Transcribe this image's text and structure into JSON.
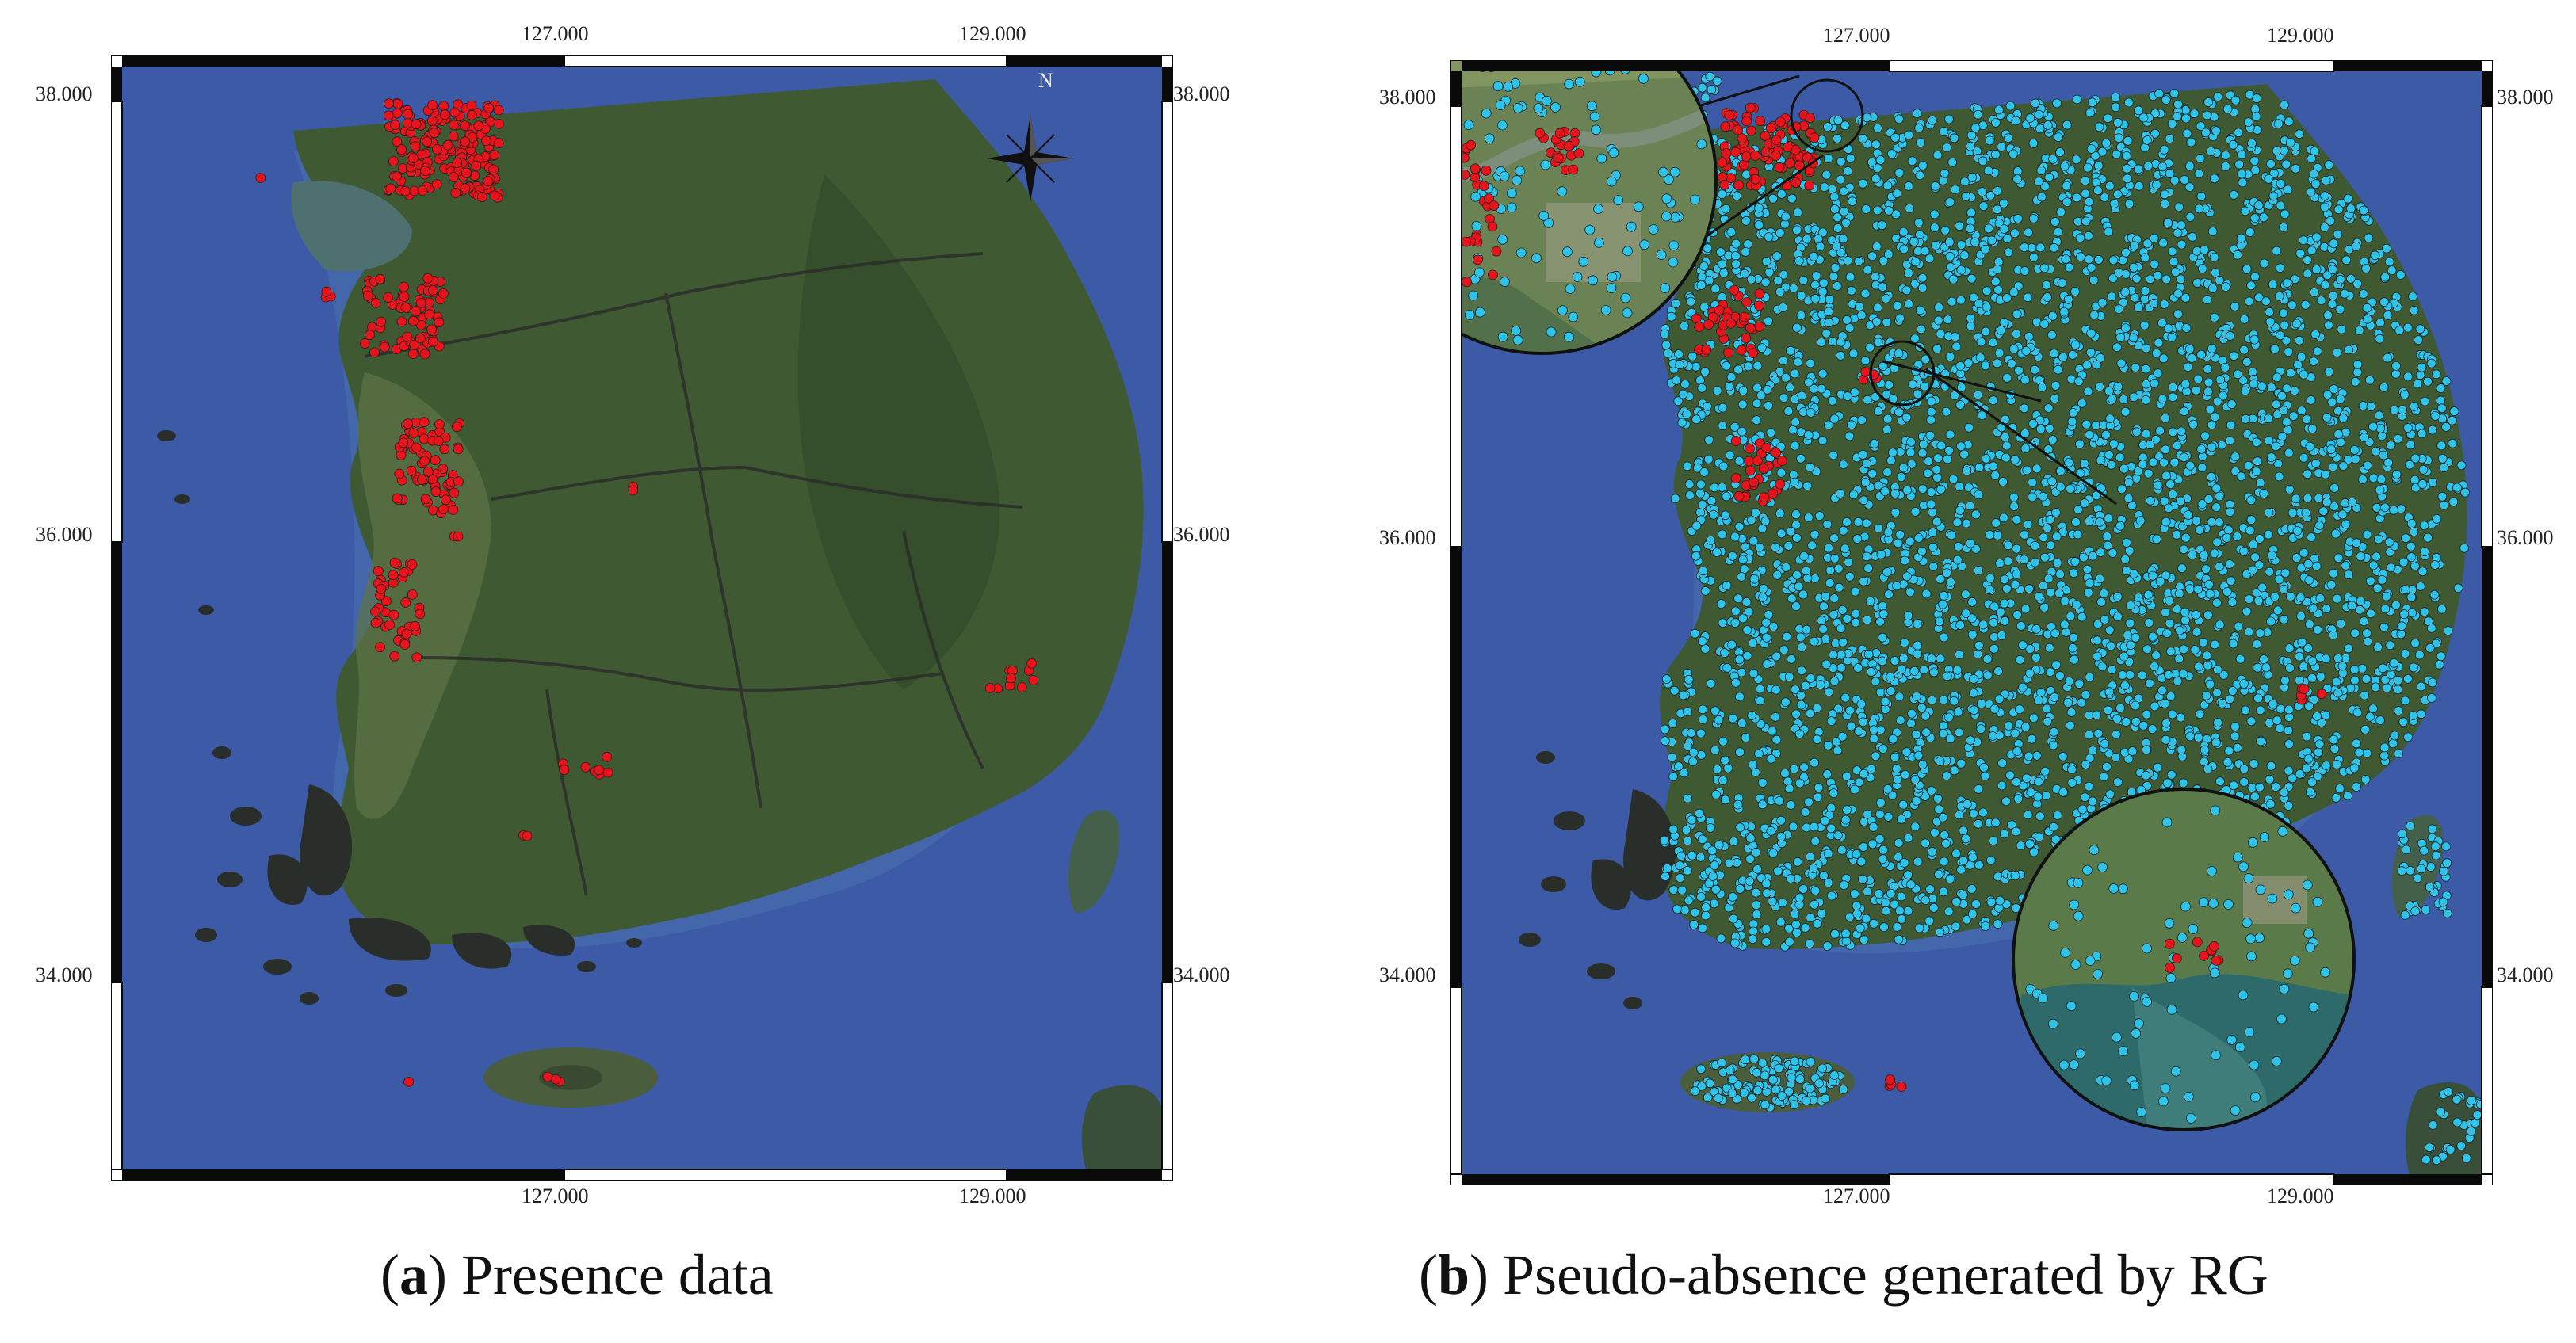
{
  "panels": [
    {
      "id": "a",
      "caption_letter": "a",
      "caption_text": "Presence data",
      "top_ticks": [
        "127.000",
        "129.000"
      ],
      "bottom_ticks": [
        "127.000",
        "129.000"
      ],
      "left_ticks": [
        "38.000",
        "36.000",
        "34.000"
      ],
      "right_ticks": [
        "38.000",
        "36.000",
        "34.000"
      ],
      "north_label": "N"
    },
    {
      "id": "b",
      "caption_letter": "b",
      "caption_text": "Pseudo-absence generated by RG",
      "top_ticks": [
        "127.000",
        "129.000"
      ],
      "bottom_ticks": [
        "127.000",
        "129.000"
      ],
      "left_ticks": [
        "38.000",
        "36.000",
        "34.000"
      ],
      "right_ticks": [
        "38.000",
        "36.000",
        "34.000"
      ]
    }
  ],
  "colors": {
    "sea": "#3d5aa6",
    "land": "#3f5a32",
    "presence_point": "#e8141b",
    "pseudo_absence_point": "#2ec4ea",
    "frame": "#0a0a0a"
  },
  "icons": [
    "north-arrow-icon",
    "zoom-inset-circle"
  ]
}
